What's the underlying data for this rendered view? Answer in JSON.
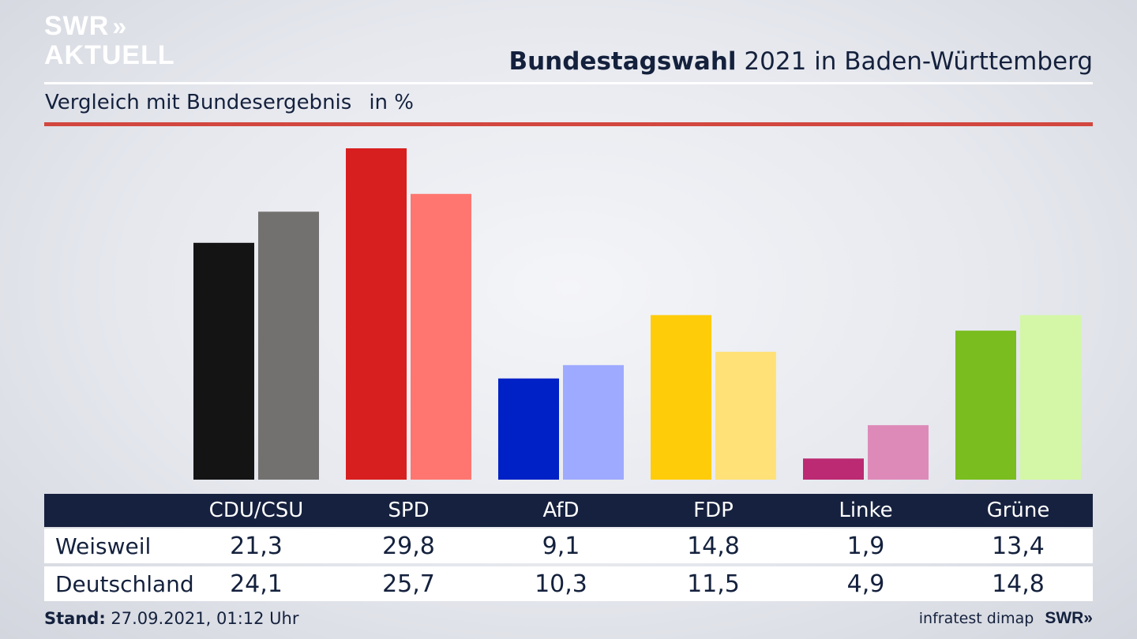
{
  "brand": {
    "logo_line1": "SWR",
    "logo_chevrons": "»",
    "logo_line2": "AKTUELL",
    "footer_logo": "SWR»"
  },
  "header": {
    "title_bold": "Bundestagswahl",
    "title_rest": " 2021 in Baden-Württemberg",
    "subtitle": "Vergleich mit Bundesergebnis",
    "unit": "in %"
  },
  "footer": {
    "stand_label": "Stand:",
    "stand_value": " 27.09.2021, 01:12 Uhr",
    "source": "infratest dimap"
  },
  "chart_data": {
    "type": "bar",
    "title": "Bundestagswahl 2021 in Baden-Württemberg",
    "subtitle": "Vergleich mit Bundesergebnis",
    "unit": "in %",
    "categories": [
      "CDU/CSU",
      "SPD",
      "AfD",
      "FDP",
      "Linke",
      "Grüne"
    ],
    "series": [
      {
        "name": "Weisweil",
        "values": [
          21.3,
          29.8,
          9.1,
          14.8,
          1.9,
          13.4
        ],
        "display": [
          "21,3",
          "29,8",
          "9,1",
          "14,8",
          "1,9",
          "13,4"
        ],
        "colors": [
          "#141414",
          "#d81f1f",
          "#0021c6",
          "#ffcc0a",
          "#bb2a72",
          "#79bd1e"
        ]
      },
      {
        "name": "Deutschland",
        "values": [
          24.1,
          25.7,
          10.3,
          11.5,
          4.9,
          14.8
        ],
        "display": [
          "24,1",
          "25,7",
          "10,3",
          "11,5",
          "4,9",
          "14,8"
        ],
        "colors": [
          "#737170",
          "#ff7671",
          "#9eaaff",
          "#ffe177",
          "#de8ab9",
          "#d3f7a6"
        ]
      }
    ],
    "ylim": [
      0,
      30
    ],
    "grid": false,
    "legend": "table-below"
  }
}
